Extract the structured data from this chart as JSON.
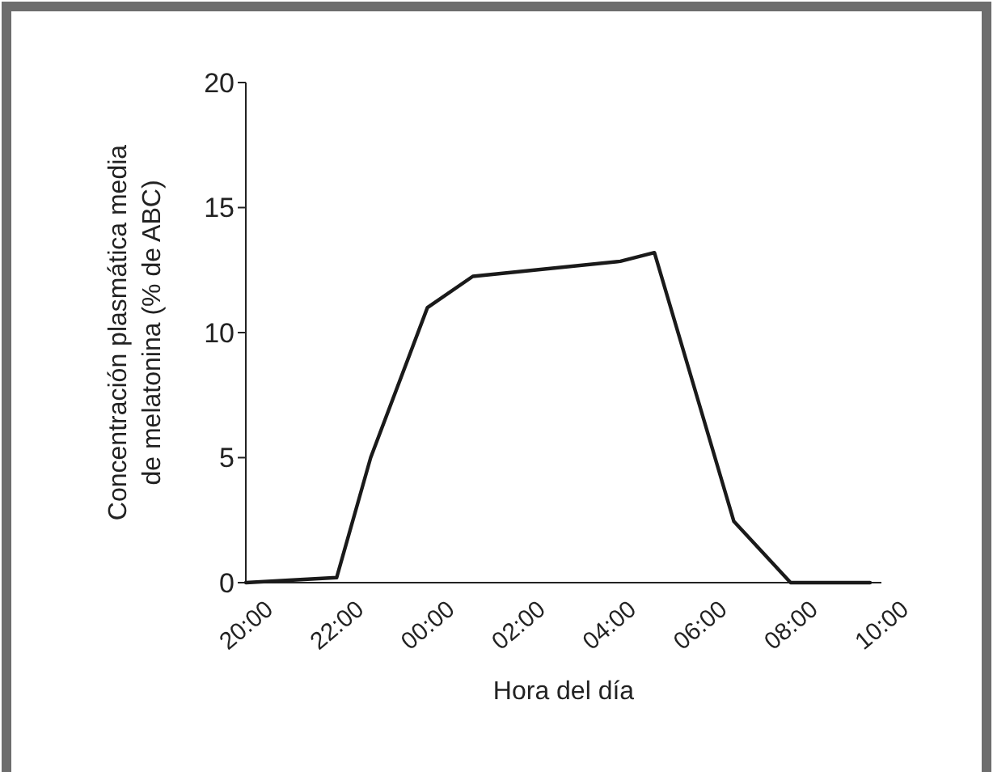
{
  "chart_data": {
    "type": "line",
    "xlabel": "Hora del día",
    "ylabel": "Concentración plasmática media\nde melatonina (% de ABC)",
    "x": [
      "2000-01-01T20:00",
      "2000-01-01T22:00",
      "2000-01-01T22:45",
      "2000-01-02T00:00",
      "2000-01-02T01:00",
      "2000-01-02T04:15",
      "2000-01-02T05:00",
      "2000-01-02T06:45",
      "2000-01-02T08:00",
      "2000-01-02T09:45"
    ],
    "series": [
      {
        "color": "#1a1a1a",
        "values": [
          0,
          0.2,
          5,
          11,
          12.25,
          12.85,
          13.2,
          2.45,
          0,
          0
        ]
      }
    ],
    "xlim": [
      "2000-01-01T20:00",
      "2000-01-02T10:00"
    ],
    "xticks": [
      {
        "value": "2000-01-01T20:00",
        "label": "20:00"
      },
      {
        "value": "2000-01-01T22:00",
        "label": "22:00"
      },
      {
        "value": "2000-01-02T00:00",
        "label": "00:00"
      },
      {
        "value": "2000-01-02T02:00",
        "label": "02:00"
      },
      {
        "value": "2000-01-02T04:00",
        "label": "04:00"
      },
      {
        "value": "2000-01-02T06:00",
        "label": "06:00"
      },
      {
        "value": "2000-01-02T08:00",
        "label": "08:00"
      },
      {
        "value": "2000-01-02T10:00",
        "label": "10:00"
      }
    ],
    "ylim": [
      0,
      20
    ],
    "yticks": [
      0,
      5,
      10,
      15,
      20
    ],
    "grid": false,
    "marker": "none",
    "line_style": "solid"
  }
}
